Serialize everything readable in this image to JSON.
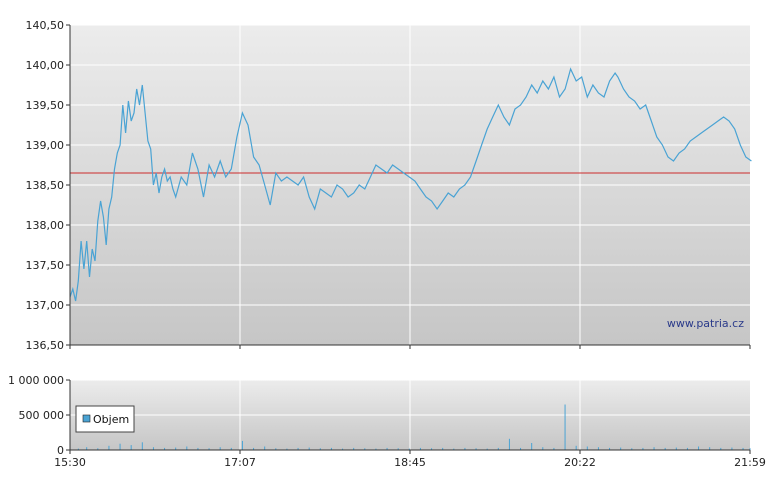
{
  "watermark": "www.patria.cz",
  "colors": {
    "price_line": "#4aa3d4",
    "reference_line": "#cc2b2b",
    "volume_bar": "#4aa3d4",
    "grid": "#ffffff",
    "plot_top": "#ececec",
    "plot_bottom": "#c6c6c6"
  },
  "chart_data": [
    {
      "type": "line",
      "name": "price",
      "x_tick_labels": [
        "15:30",
        "17:07",
        "18:45",
        "20:22",
        "21:59"
      ],
      "y_tick_labels": [
        "136,50",
        "137,00",
        "137,50",
        "138,00",
        "138,50",
        "139,00",
        "139,50",
        "140,00",
        "140,50"
      ],
      "ylim": [
        136.5,
        140.5
      ],
      "grid": true,
      "reference_line": 138.65,
      "x_minutes_since_open": [
        0,
        2,
        4,
        6,
        8,
        10,
        12,
        14,
        16,
        18,
        20,
        22,
        24,
        26,
        28,
        30,
        32,
        34,
        36,
        38,
        40,
        42,
        44,
        46,
        48,
        50,
        52,
        54,
        56,
        58,
        60,
        62,
        64,
        66,
        68,
        70,
        72,
        74,
        76,
        80,
        84,
        88,
        92,
        96,
        100,
        104,
        108,
        112,
        116,
        120,
        124,
        128,
        132,
        136,
        140,
        144,
        148,
        152,
        156,
        160,
        164,
        168,
        172,
        176,
        180,
        184,
        188,
        192,
        196,
        200,
        204,
        208,
        212,
        216,
        220,
        224,
        228,
        232,
        236,
        240,
        244,
        248,
        252,
        256,
        260,
        264,
        268,
        272,
        276,
        280,
        284,
        288,
        292,
        296,
        300,
        304,
        308,
        312,
        316,
        320,
        324,
        328,
        332,
        336,
        340,
        344,
        348,
        352,
        356,
        360,
        364,
        368,
        372,
        376,
        380,
        384,
        388,
        392,
        394,
        398,
        402,
        406,
        410,
        414,
        418,
        422,
        426,
        430,
        434,
        438,
        442,
        446,
        450,
        454,
        458,
        462,
        466,
        470,
        474,
        478,
        482,
        486,
        490
      ],
      "values": [
        137.1,
        137.2,
        137.05,
        137.3,
        137.8,
        137.45,
        137.8,
        137.35,
        137.7,
        137.55,
        138.05,
        138.3,
        138.1,
        137.75,
        138.2,
        138.35,
        138.7,
        138.9,
        139.0,
        139.5,
        139.15,
        139.55,
        139.3,
        139.4,
        139.7,
        139.5,
        139.75,
        139.4,
        139.05,
        138.95,
        138.5,
        138.65,
        138.4,
        138.6,
        138.7,
        138.55,
        138.6,
        138.45,
        138.35,
        138.6,
        138.5,
        138.9,
        138.7,
        138.35,
        138.75,
        138.6,
        138.8,
        138.6,
        138.7,
        139.1,
        139.4,
        139.25,
        138.85,
        138.75,
        138.5,
        138.25,
        138.65,
        138.55,
        138.6,
        138.55,
        138.5,
        138.6,
        138.35,
        138.2,
        138.45,
        138.4,
        138.35,
        138.5,
        138.45,
        138.35,
        138.4,
        138.5,
        138.45,
        138.6,
        138.75,
        138.7,
        138.65,
        138.75,
        138.7,
        138.65,
        138.6,
        138.55,
        138.45,
        138.35,
        138.3,
        138.2,
        138.3,
        138.4,
        138.35,
        138.45,
        138.5,
        138.6,
        138.8,
        139.0,
        139.2,
        139.35,
        139.5,
        139.35,
        139.25,
        139.45,
        139.5,
        139.6,
        139.75,
        139.65,
        139.8,
        139.7,
        139.85,
        139.6,
        139.7,
        139.95,
        139.8,
        139.85,
        139.6,
        139.75,
        139.65,
        139.6,
        139.8,
        139.9,
        139.85,
        139.7,
        139.6,
        139.55,
        139.45,
        139.5,
        139.3,
        139.1,
        139.0,
        138.85,
        138.8,
        138.9,
        138.95,
        139.05,
        139.1,
        139.15,
        139.2,
        139.25,
        139.3,
        139.35,
        139.3,
        139.2,
        139.0,
        138.85,
        138.8
      ]
    },
    {
      "type": "bar",
      "name": "volume",
      "legend": "Objem",
      "y_tick_labels": [
        "0",
        "500 000",
        "1 000 000"
      ],
      "ylim": [
        0,
        1000000
      ],
      "grid": true,
      "x_minutes_since_open": [
        0,
        6,
        12,
        20,
        28,
        36,
        44,
        52,
        60,
        68,
        76,
        84,
        92,
        100,
        108,
        116,
        124,
        132,
        140,
        148,
        156,
        164,
        172,
        180,
        188,
        196,
        204,
        212,
        220,
        228,
        236,
        244,
        252,
        260,
        268,
        276,
        284,
        292,
        300,
        308,
        316,
        324,
        332,
        340,
        348,
        356,
        364,
        372,
        380,
        388,
        396,
        404,
        412,
        420,
        428,
        436,
        444,
        452,
        460,
        468,
        476,
        484,
        489
      ],
      "values": [
        30000,
        20000,
        40000,
        25000,
        60000,
        90000,
        70000,
        110000,
        40000,
        30000,
        35000,
        50000,
        30000,
        25000,
        40000,
        30000,
        130000,
        30000,
        50000,
        25000,
        20000,
        30000,
        35000,
        25000,
        30000,
        20000,
        30000,
        25000,
        20000,
        30000,
        25000,
        20000,
        30000,
        25000,
        30000,
        20000,
        30000,
        25000,
        20000,
        30000,
        160000,
        30000,
        100000,
        40000,
        30000,
        650000,
        60000,
        50000,
        40000,
        30000,
        35000,
        25000,
        30000,
        40000,
        30000,
        35000,
        30000,
        50000,
        40000,
        30000,
        35000,
        30000,
        25000
      ]
    }
  ]
}
